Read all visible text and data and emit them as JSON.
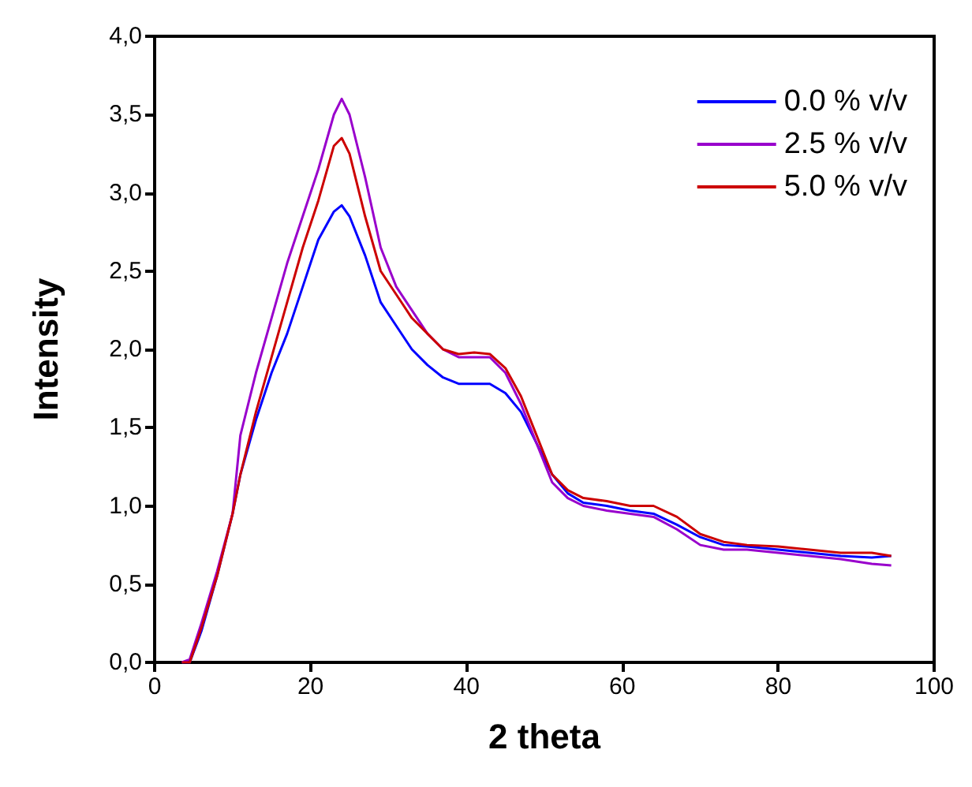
{
  "chart_data": {
    "type": "line",
    "xlabel": "2 theta",
    "ylabel": "Intensity",
    "x": [
      3.5,
      4.5,
      6,
      8,
      10,
      11,
      13,
      15,
      17,
      19,
      21,
      23,
      24,
      25,
      27,
      29,
      31,
      33,
      35,
      37,
      39,
      41,
      43,
      45,
      47,
      49,
      51,
      53,
      55,
      58,
      61,
      64,
      67,
      70,
      73,
      76,
      80,
      84,
      88,
      92,
      94.5
    ],
    "series": [
      {
        "name": "0.0 % v/v",
        "color": "#0000ff",
        "values": [
          0,
          0,
          0.2,
          0.55,
          0.95,
          1.2,
          1.55,
          1.85,
          2.1,
          2.4,
          2.7,
          2.88,
          2.92,
          2.85,
          2.6,
          2.3,
          2.15,
          2.0,
          1.9,
          1.82,
          1.78,
          1.78,
          1.78,
          1.72,
          1.6,
          1.4,
          1.2,
          1.08,
          1.02,
          1.0,
          0.97,
          0.95,
          0.88,
          0.8,
          0.75,
          0.74,
          0.72,
          0.7,
          0.68,
          0.67,
          0.68
        ]
      },
      {
        "name": "2.5 % v/v",
        "color": "#9900cc",
        "values": [
          0,
          0.02,
          0.25,
          0.58,
          0.95,
          1.45,
          1.85,
          2.2,
          2.55,
          2.85,
          3.15,
          3.5,
          3.6,
          3.5,
          3.1,
          2.65,
          2.4,
          2.25,
          2.1,
          2.0,
          1.95,
          1.95,
          1.95,
          1.85,
          1.65,
          1.4,
          1.15,
          1.05,
          1.0,
          0.97,
          0.95,
          0.93,
          0.85,
          0.75,
          0.72,
          0.72,
          0.7,
          0.68,
          0.66,
          0.63,
          0.62
        ]
      },
      {
        "name": "5.0 % v/v",
        "color": "#cc0000",
        "values": [
          0,
          0,
          0.22,
          0.55,
          0.95,
          1.2,
          1.6,
          1.95,
          2.3,
          2.65,
          2.95,
          3.3,
          3.35,
          3.25,
          2.85,
          2.5,
          2.35,
          2.2,
          2.1,
          2.0,
          1.97,
          1.98,
          1.97,
          1.88,
          1.7,
          1.45,
          1.2,
          1.1,
          1.05,
          1.03,
          1.0,
          1.0,
          0.93,
          0.82,
          0.77,
          0.75,
          0.74,
          0.72,
          0.7,
          0.7,
          0.68
        ]
      }
    ],
    "xlim": [
      0,
      100
    ],
    "xticks": [
      0,
      20,
      40,
      60,
      80,
      100
    ],
    "ylim": [
      0,
      4
    ],
    "yticks": [
      {
        "value": 0,
        "label": "0,0"
      },
      {
        "value": 0.5,
        "label": "0,5"
      },
      {
        "value": 1,
        "label": "1,0"
      },
      {
        "value": 1.5,
        "label": "1,5"
      },
      {
        "value": 2,
        "label": "2,0"
      },
      {
        "value": 2.5,
        "label": "2,5"
      },
      {
        "value": 3,
        "label": "3,0"
      },
      {
        "value": 3.5,
        "label": "3,5"
      },
      {
        "value": 4,
        "label": "4,0"
      }
    ],
    "legend": "top right",
    "grid": false,
    "marker": "none",
    "line_style": "solid"
  }
}
